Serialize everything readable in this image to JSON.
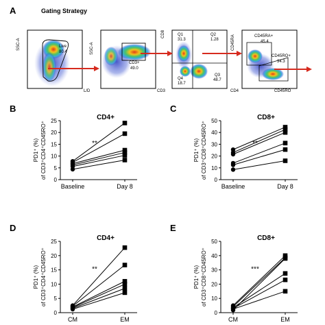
{
  "panel_a": {
    "letter": "A",
    "title": "Gating Strategy",
    "plots": [
      {
        "ylabel": "SSC-A",
        "xlabel": "L/D",
        "gates": [
          {
            "name": "Live",
            "value": "80.4"
          }
        ]
      },
      {
        "ylabel": "SSC-A",
        "xlabel": "CD3",
        "gates": [
          {
            "name": "CD3+",
            "value": "49.0"
          }
        ]
      },
      {
        "ylabel": "CD8",
        "xlabel": "CD4",
        "gates": [
          {
            "name": "Q1",
            "value": "31.3"
          },
          {
            "name": "Q2",
            "value": "1.28"
          },
          {
            "name": "Q4",
            "value": "18.7"
          },
          {
            "name": "Q3",
            "value": "48.7"
          }
        ]
      },
      {
        "ylabel": "CD45RA",
        "xlabel": "CD45RO",
        "gates": [
          {
            "name": "CD45RA+",
            "value": "45.4"
          },
          {
            "name": "CD45RO+",
            "value": "34.3"
          }
        ]
      }
    ],
    "arrow_color": "#d62a1e"
  },
  "chart_data": [
    {
      "panel": "B",
      "type": "line",
      "title": "CD4+",
      "ylabel_line1": "PD1⁺ (%)",
      "ylabel_line2": "of CD3⁺CD4⁺CD45RO⁺",
      "categories": [
        "Baseline",
        "Day 8"
      ],
      "ylim": [
        0,
        25
      ],
      "yticks": [
        "0",
        "5",
        "10",
        "15",
        "20",
        "25"
      ],
      "significance": "**",
      "pairs": [
        [
          7.8,
          24.0
        ],
        [
          7.3,
          19.5
        ],
        [
          6.8,
          12.5
        ],
        [
          6.2,
          11.5
        ],
        [
          5.6,
          10.3
        ],
        [
          4.4,
          8.3
        ]
      ]
    },
    {
      "panel": "C",
      "type": "line",
      "title": "CD8+",
      "ylabel_line1": "PD1⁺ (%)",
      "ylabel_line2": "of CD3⁺CD8⁺CD45RO⁺",
      "categories": [
        "Baseline",
        "Day 8"
      ],
      "ylim": [
        0,
        50
      ],
      "yticks": [
        "0",
        "10",
        "20",
        "30",
        "40",
        "50"
      ],
      "significance": "**",
      "pairs": [
        [
          25.5,
          44.5
        ],
        [
          23.0,
          42.5
        ],
        [
          21.5,
          40.0
        ],
        [
          14.0,
          31.0
        ],
        [
          12.5,
          25.5
        ],
        [
          8.5,
          16.0
        ]
      ]
    },
    {
      "panel": "D",
      "type": "line",
      "title": "CD4+",
      "ylabel_line1": "PD1⁺ (%)",
      "ylabel_line2": "of CD3⁺CD4⁺CD45RO⁺",
      "categories": [
        "CM",
        "EM"
      ],
      "ylim": [
        0,
        25
      ],
      "yticks": [
        "0",
        "5",
        "10",
        "15",
        "20",
        "25"
      ],
      "significance": "**",
      "pairs": [
        [
          2.5,
          22.8
        ],
        [
          2.3,
          16.7
        ],
        [
          2.0,
          11.0
        ],
        [
          1.8,
          10.0
        ],
        [
          1.5,
          8.5
        ],
        [
          1.2,
          7.0
        ]
      ]
    },
    {
      "panel": "E",
      "type": "line",
      "title": "CD8+",
      "ylabel_line1": "PD1⁺ (%)",
      "ylabel_line2": "of CD3⁺CD8⁺CD45RO⁺",
      "categories": [
        "CM",
        "EM"
      ],
      "ylim": [
        0,
        50
      ],
      "yticks": [
        "0",
        "10",
        "20",
        "30",
        "40",
        "50"
      ],
      "significance": "***",
      "pairs": [
        [
          5.0,
          40.0
        ],
        [
          4.2,
          38.5
        ],
        [
          3.5,
          27.5
        ],
        [
          3.0,
          23.0
        ],
        [
          2.5,
          15.0
        ],
        [
          1.8,
          38.0
        ]
      ]
    }
  ]
}
